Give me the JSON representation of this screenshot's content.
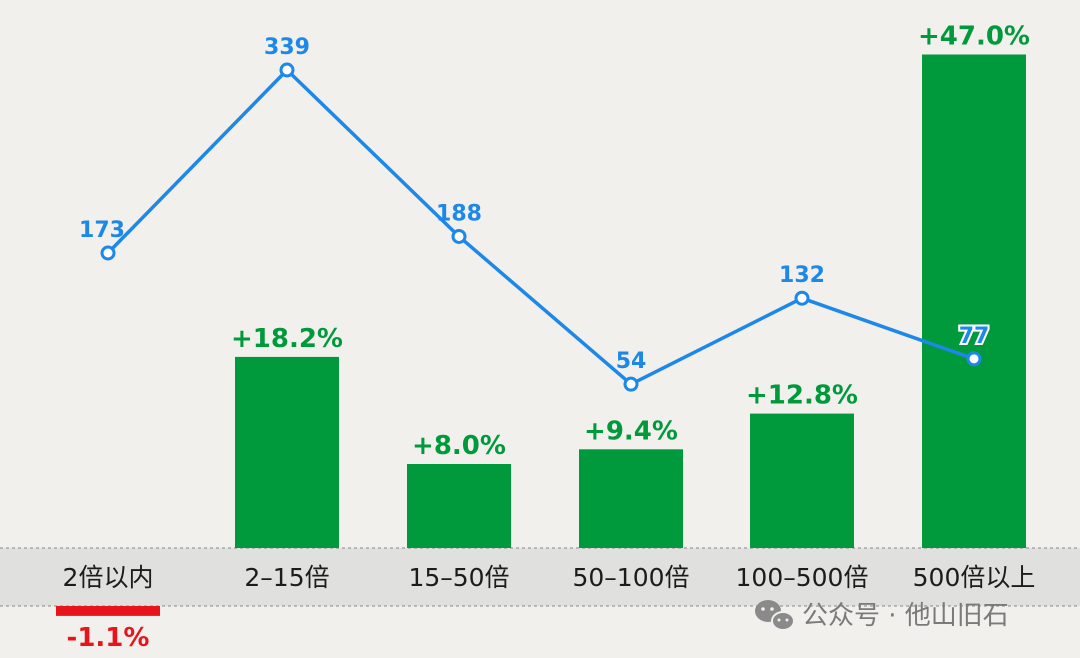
{
  "chart_data": {
    "type": "bar",
    "categories": [
      "2倍以内",
      "2–15倍",
      "15–50倍",
      "50–100倍",
      "100–500倍",
      "500倍以上"
    ],
    "series": [
      {
        "type": "bar",
        "values": [
          -1.1,
          18.2,
          8.0,
          9.4,
          12.8,
          47.0
        ],
        "labels": [
          "-1.1%",
          "+18.2%",
          "+8.0%",
          "+9.4%",
          "+12.8%",
          "+47.0%"
        ]
      },
      {
        "type": "line",
        "values": [
          173,
          339,
          188,
          54,
          132,
          77
        ],
        "labels": [
          "173",
          "339",
          "188",
          "54",
          "132",
          "77"
        ]
      }
    ],
    "colors": {
      "positive_bar": "#009a3d",
      "negative_bar": "#e8141c",
      "line": "#1d88e8",
      "category_band": "#e0e0de"
    }
  },
  "watermark": {
    "icon": "wechat-icon",
    "text": "公众号 · 他山旧石"
  }
}
